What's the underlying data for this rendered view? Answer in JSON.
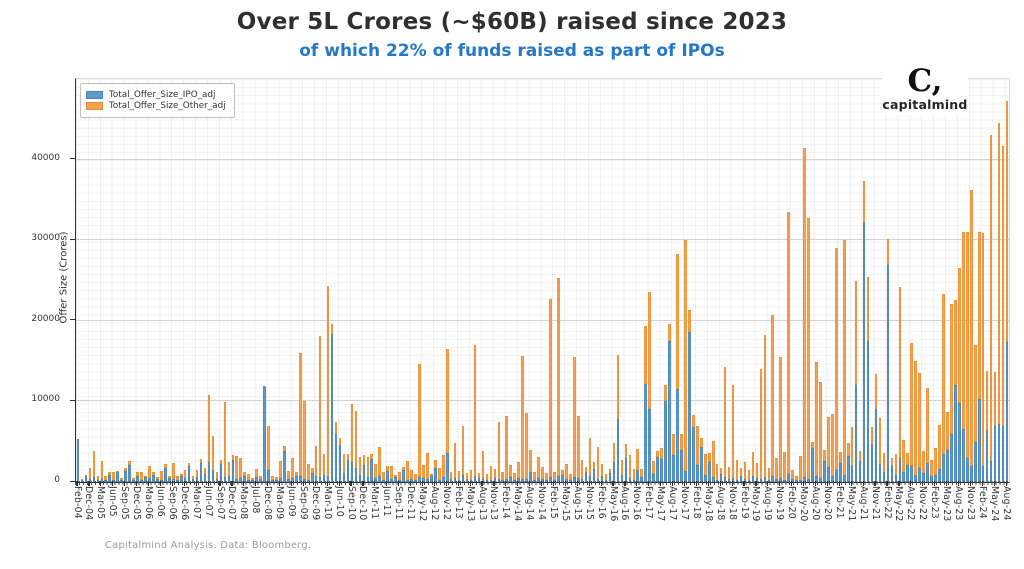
{
  "header": {
    "title": "Over 5L Crores (~$60B) raised since 2023",
    "subtitle": "of which 22% of funds raised as part of IPOs"
  },
  "branding": {
    "logo_mark": "C,",
    "logo_text": "capitalmind"
  },
  "footer": {
    "note": "Capitalmind Analysis. Data: Bloomberg."
  },
  "colors": {
    "ipo_blue": "#5D9BCD",
    "other_orange": "#F9A14B",
    "subtitle_blue": "#2478c8"
  },
  "chart_data": {
    "type": "bar",
    "stacked": true,
    "title": "Over 5L Crores (~$60B) raised since 2023",
    "subtitle": "of which 22% of funds raised as part of IPOs",
    "ylabel": "Offer Size (Crores)",
    "ylim": [
      0,
      50000
    ],
    "yticks": [
      0,
      10000,
      20000,
      30000,
      40000
    ],
    "grid": "minor-dotted",
    "legend_position": "upper-left",
    "ticks_every_n_bars": 3,
    "x_tick_labels": [
      "Feb-04",
      "Dec-04",
      "Mar-05",
      "Jun-05",
      "Sep-05",
      "Dec-05",
      "Mar-06",
      "Jun-06",
      "Sep-06",
      "Dec-06",
      "Mar-07",
      "Jun-07",
      "Sep-07",
      "Dec-07",
      "Mar-08",
      "Jul-08",
      "Dec-08",
      "Mar-09",
      "Jun-09",
      "Sep-09",
      "Dec-09",
      "Mar-10",
      "Jun-10",
      "Sep-10",
      "Dec-10",
      "Mar-11",
      "Jun-11",
      "Sep-11",
      "Dec-11",
      "May-12",
      "Aug-12",
      "Nov-12",
      "Feb-13",
      "May-13",
      "Aug-13",
      "Nov-13",
      "Feb-14",
      "May-14",
      "Aug-14",
      "Nov-14",
      "Feb-15",
      "May-15",
      "Aug-15",
      "Nov-15",
      "Feb-16",
      "May-16",
      "Aug-16",
      "Nov-16",
      "Feb-17",
      "May-17",
      "Aug-17",
      "Nov-17",
      "Feb-18",
      "May-18",
      "Aug-18",
      "Nov-18",
      "Feb-19",
      "May-19",
      "Aug-19",
      "Nov-19",
      "Feb-20",
      "May-20",
      "Aug-20",
      "Nov-20",
      "Feb-21",
      "May-21",
      "Aug-21",
      "Nov-21",
      "Feb-22",
      "May-22",
      "Aug-22",
      "Nov-22",
      "Feb-23",
      "May-23",
      "Aug-23",
      "Nov-23",
      "Feb-24",
      "May-24",
      "Aug-24"
    ],
    "series": [
      {
        "name": "Total_Offer_Size_IPO_adj",
        "color": "#5D9BCD",
        "values": [
          5300,
          300,
          700,
          400,
          600,
          200,
          400,
          300,
          900,
          300,
          1200,
          200,
          1400,
          2100,
          300,
          800,
          300,
          600,
          500,
          900,
          400,
          300,
          1800,
          500,
          400,
          300,
          800,
          500,
          2000,
          400,
          600,
          2400,
          1000,
          2500,
          1500,
          400,
          2200,
          600,
          800,
          2700,
          400,
          500,
          800,
          300,
          200,
          600,
          400,
          11800,
          1500,
          300,
          200,
          500,
          3900,
          400,
          500,
          800,
          700,
          400,
          300,
          1100,
          700,
          600,
          900,
          700,
          18400,
          6000,
          4600,
          1100,
          2700,
          2500,
          1800,
          900,
          2100,
          600,
          2800,
          500,
          700,
          300,
          1400,
          400,
          600,
          300,
          1500,
          300,
          400,
          300,
          600,
          500,
          400,
          700,
          1800,
          300,
          600,
          3600,
          400,
          500,
          300,
          900,
          400,
          300,
          700,
          500,
          400,
          200,
          300,
          500,
          400,
          300,
          400,
          600,
          300,
          500,
          400,
          400,
          1200,
          300,
          500,
          400,
          300,
          600,
          300,
          700,
          900,
          400,
          300,
          600,
          500,
          400,
          1300,
          700,
          1600,
          400,
          800,
          300,
          1100,
          2500,
          7800,
          900,
          3000,
          500,
          300,
          1500,
          600,
          12200,
          9100,
          1000,
          3100,
          2900,
          10000,
          17500,
          3400,
          11500,
          4000,
          1400,
          18600,
          6800,
          2100,
          4300,
          900,
          2500,
          600,
          300,
          1000,
          600,
          400,
          500,
          300,
          700,
          400,
          300,
          800,
          500,
          400,
          600,
          300,
          700,
          400,
          500,
          300,
          1000,
          400,
          200,
          300,
          600,
          400,
          4200,
          700,
          500,
          2600,
          1900,
          700,
          1500,
          2400,
          900,
          3200,
          2000,
          12000,
          2600,
          32300,
          17500,
          4700,
          9000,
          2200,
          1200,
          26900,
          2000,
          900,
          3000,
          1300,
          2100,
          2000,
          900,
          1700,
          1100,
          2400,
          800,
          900,
          1600,
          3500,
          4000,
          6000,
          12000,
          9800,
          6600,
          3000,
          2000,
          5000,
          10300,
          2000,
          6500,
          2600,
          7000,
          7200,
          7000,
          17400
        ]
      },
      {
        "name": "Total_Offer_Size_Other_adj",
        "color": "#F9A14B",
        "values": [
          0,
          100,
          200,
          1300,
          3300,
          600,
          2200,
          500,
          300,
          900,
          200,
          300,
          400,
          500,
          200,
          400,
          900,
          200,
          1500,
          300,
          200,
          1100,
          400,
          200,
          1900,
          400,
          200,
          1000,
          400,
          300,
          900,
          500,
          700,
          8300,
          4200,
          800,
          500,
          9300,
          1700,
          700,
          2800,
          2500,
          400,
          700,
          300,
          1000,
          300,
          100,
          5500,
          500,
          400,
          2100,
          600,
          1000,
          2500,
          400,
          15300,
          9700,
          1900,
          600,
          3800,
          17500,
          2600,
          23600,
          1200,
          1500,
          900,
          2400,
          800,
          7200,
          7000,
          2200,
          1300,
          2500,
          700,
          1700,
          3700,
          900,
          600,
          1600,
          300,
          1000,
          400,
          2300,
          1100,
          700,
          14000,
          1600,
          3200,
          300,
          900,
          1400,
          2700,
          12900,
          800,
          4300,
          1100,
          6000,
          700,
          1200,
          16300,
          600,
          3400,
          800,
          1700,
          1100,
          7000,
          900,
          7800,
          1500,
          800,
          2000,
          15200,
          8200,
          2800,
          900,
          2600,
          1500,
          800,
          22100,
          1000,
          24600,
          600,
          1800,
          700,
          14900,
          7700,
          2300,
          600,
          4800,
          900,
          3900,
          1400,
          700,
          500,
          2300,
          7900,
          1800,
          1700,
          2900,
          1300,
          2600,
          1000,
          7200,
          14500,
          1600,
          800,
          1300,
          2000,
          2100,
          2600,
          16800,
          2000,
          28600,
          2700,
          1500,
          4900,
          1200,
          2600,
          1100,
          4500,
          1900,
          700,
          13700,
          1500,
          11500,
          2400,
          1000,
          2100,
          1200,
          2900,
          1800,
          13600,
          17600,
          1500,
          20000,
          2600,
          15000,
          3400,
          32500,
          1100,
          600,
          2900,
          40900,
          32400,
          800,
          14200,
          11900,
          1400,
          6200,
          7800,
          27500,
          1300,
          29100,
          1600,
          4800,
          13000,
          1200,
          5100,
          7900,
          2100,
          4400,
          5800,
          2400,
          3200,
          1000,
          2600,
          21200,
          3900,
          1500,
          15300,
          14100,
          11800,
          2700,
          9300,
          1900,
          3300,
          5500,
          19800,
          4700,
          16100,
          10600,
          16700,
          24400,
          28000,
          34200,
          12000,
          20700,
          28900,
          7300,
          40500,
          6600,
          37400,
          34700,
          29900
        ]
      }
    ]
  }
}
